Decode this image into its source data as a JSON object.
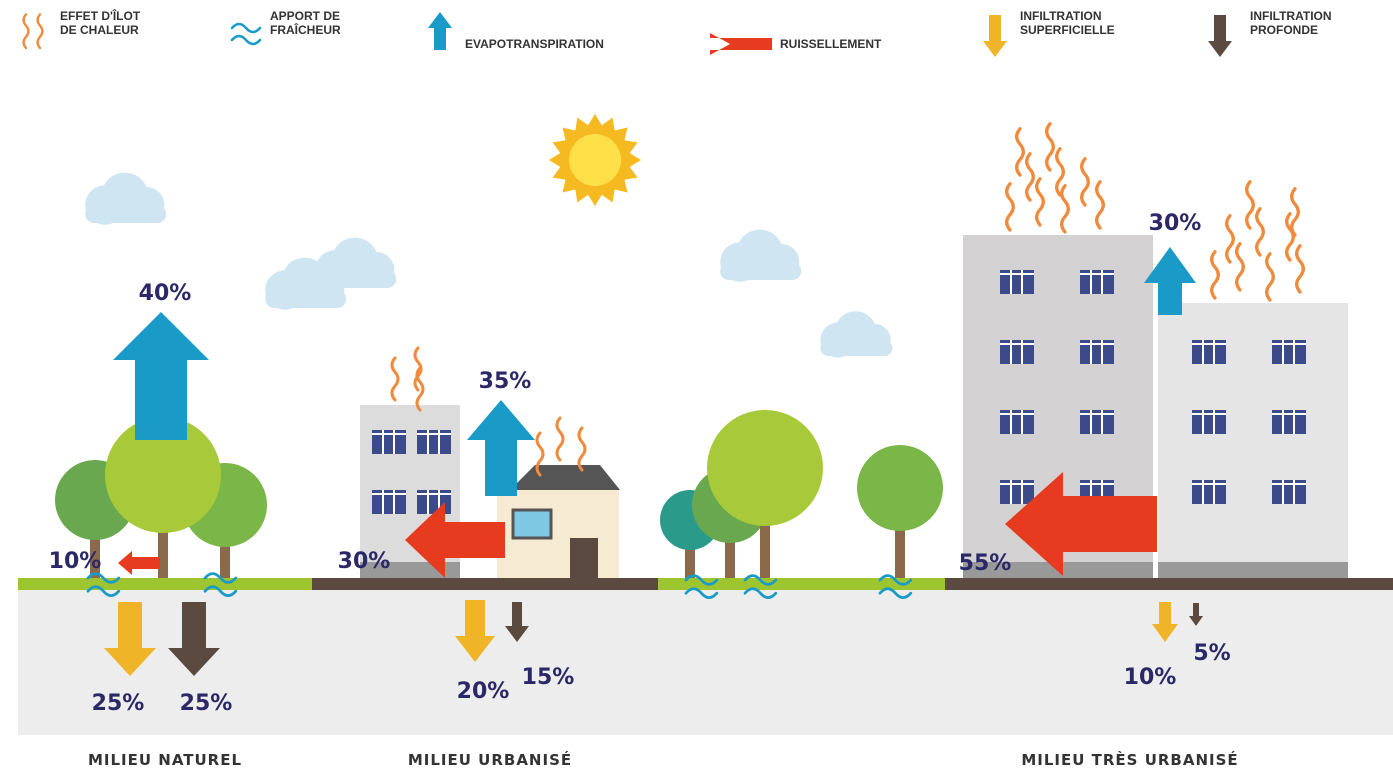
{
  "legend": [
    {
      "lines": [
        "EFFET D'ÎLOT",
        "DE CHALEUR"
      ]
    },
    {
      "lines": [
        "APPORT DE",
        "FRAÎCHEUR"
      ]
    },
    {
      "lines": [
        "EVAPOTRANSPIRATION"
      ]
    },
    {
      "lines": [
        "RUISSELLEMENT"
      ]
    },
    {
      "lines": [
        "INFILTRATION",
        "SUPERFICIELLE"
      ]
    },
    {
      "lines": [
        "INFILTRATION",
        "PROFONDE"
      ]
    }
  ],
  "zones": [
    {
      "label": "MILIEU NATUREL",
      "evapotranspiration": "40%",
      "ruissellement": "10%",
      "infiltration_superficielle": "25%",
      "infiltration_profonde": "25%"
    },
    {
      "label": "MILIEU URBANISÉ",
      "evapotranspiration": "35%",
      "ruissellement": "30%",
      "infiltration_superficielle": "20%",
      "infiltration_profonde": "15%"
    },
    {
      "label": "MILIEU TRÈS URBANISÉ",
      "evapotranspiration": "30%",
      "ruissellement": "55%",
      "infiltration_superficielle": "10%",
      "infiltration_profonde": "5%"
    }
  ]
}
